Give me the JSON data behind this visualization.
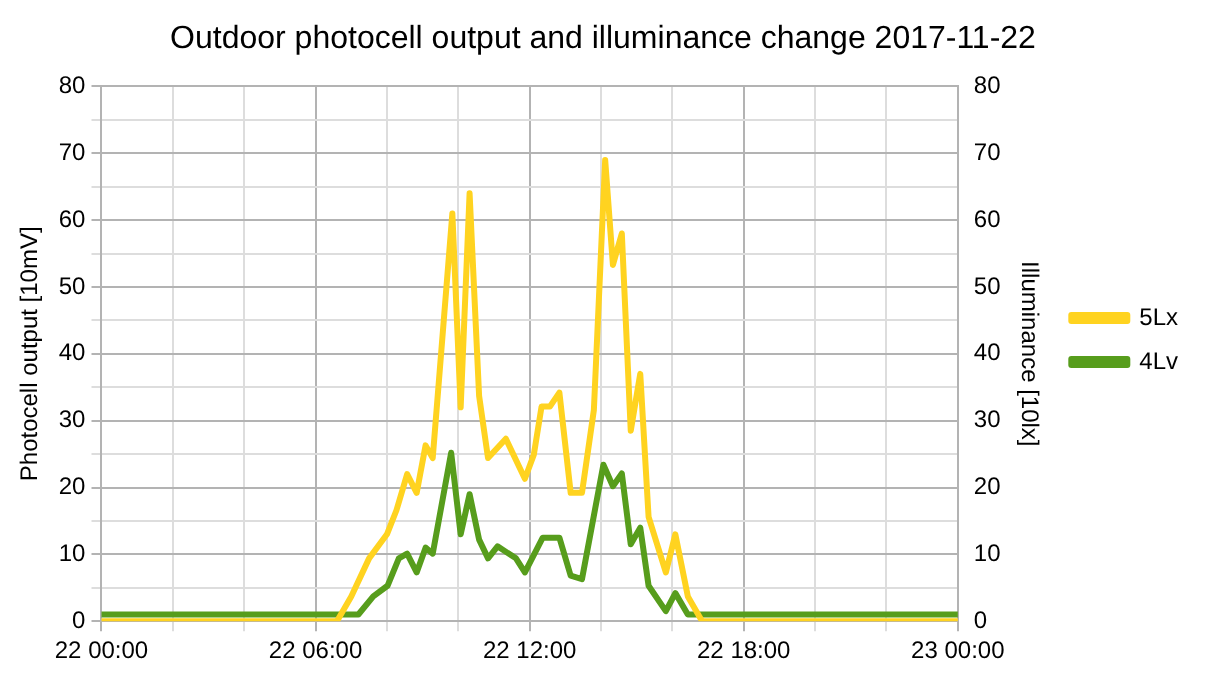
{
  "chart_data": {
    "type": "line",
    "title": "Outdoor photocell output and illuminance change 2017-11-22",
    "ylabel": "Photocell output [10mV]",
    "y2label": "Illuminance [10lx]",
    "xlim": [
      "2017-11-22T00:00",
      "2017-11-23T00:00"
    ],
    "xticks": [
      {
        "value": "2017-11-22T00:00",
        "label": "22 00:00"
      },
      {
        "value": "2017-11-22T02:00",
        "label": null
      },
      {
        "value": "2017-11-22T04:00",
        "label": null
      },
      {
        "value": "2017-11-22T06:00",
        "label": "22 06:00"
      },
      {
        "value": "2017-11-22T08:00",
        "label": null
      },
      {
        "value": "2017-11-22T10:00",
        "label": null
      },
      {
        "value": "2017-11-22T12:00",
        "label": "22 12:00"
      },
      {
        "value": "2017-11-22T14:00",
        "label": null
      },
      {
        "value": "2017-11-22T16:00",
        "label": null
      },
      {
        "value": "2017-11-22T18:00",
        "label": "22 18:00"
      },
      {
        "value": "2017-11-22T20:00",
        "label": null
      },
      {
        "value": "2017-11-22T22:00",
        "label": null
      },
      {
        "value": "2017-11-23T00:00",
        "label": "23 00:00"
      }
    ],
    "ylim": [
      0,
      80
    ],
    "yticks": [
      0,
      {
        "value": 5,
        "label": null
      },
      10,
      {
        "value": 15,
        "label": null
      },
      20,
      {
        "value": 25,
        "label": null
      },
      30,
      {
        "value": 35,
        "label": null
      },
      40,
      {
        "value": 45,
        "label": null
      },
      50,
      {
        "value": 55,
        "label": null
      },
      60,
      {
        "value": 65,
        "label": null
      },
      70,
      {
        "value": 75,
        "label": null
      },
      80
    ],
    "y2lim": [
      0,
      80
    ],
    "y2ticks": [
      0,
      10,
      20,
      30,
      40,
      50,
      60,
      70,
      80
    ],
    "grid": true,
    "legend": "right",
    "marker": "none",
    "line_style": "solid",
    "series": [
      {
        "name": "5Lx",
        "color": "#ffd320",
        "x": [
          "2017-11-22T00:00",
          "2017-11-22T06:36",
          "2017-11-22T07:00",
          "2017-11-22T07:30",
          "2017-11-22T08:00",
          "2017-11-22T08:16",
          "2017-11-22T08:34",
          "2017-11-22T08:50",
          "2017-11-22T09:05",
          "2017-11-22T09:17",
          "2017-11-22T09:50",
          "2017-11-22T10:04",
          "2017-11-22T10:19",
          "2017-11-22T10:35",
          "2017-11-22T10:50",
          "2017-11-22T11:20",
          "2017-11-22T11:52",
          "2017-11-22T12:07",
          "2017-11-22T12:20",
          "2017-11-22T12:34",
          "2017-11-22T12:50",
          "2017-11-22T13:09",
          "2017-11-22T13:28",
          "2017-11-22T13:48",
          "2017-11-22T14:07",
          "2017-11-22T14:20",
          "2017-11-22T14:35",
          "2017-11-22T14:50",
          "2017-11-22T15:06",
          "2017-11-22T15:20",
          "2017-11-22T15:49",
          "2017-11-22T16:05",
          "2017-11-22T16:26",
          "2017-11-22T16:50",
          "2017-11-23T00:00"
        ],
        "values": [
          0,
          0,
          3.7,
          9.4,
          13,
          16.6,
          22,
          19.2,
          26.3,
          24.4,
          61,
          32,
          64,
          33.7,
          24.4,
          27.3,
          21.3,
          24.9,
          32.1,
          32.1,
          34.2,
          19.2,
          19.2,
          31.6,
          69,
          53.3,
          58,
          28.5,
          37,
          15.6,
          7.3,
          13,
          3.7,
          0,
          0
        ]
      },
      {
        "name": "4Lv",
        "color": "#579d1c",
        "x": [
          "2017-11-22T00:00",
          "2017-11-22T07:12",
          "2017-11-22T07:37",
          "2017-11-22T08:01",
          "2017-11-22T08:20",
          "2017-11-22T08:34",
          "2017-11-22T08:50",
          "2017-11-22T09:05",
          "2017-11-22T09:17",
          "2017-11-22T09:48",
          "2017-11-22T10:04",
          "2017-11-22T10:19",
          "2017-11-22T10:35",
          "2017-11-22T10:50",
          "2017-11-22T11:06",
          "2017-11-22T11:37",
          "2017-11-22T11:52",
          "2017-11-22T12:22",
          "2017-11-22T12:50",
          "2017-11-22T13:09",
          "2017-11-22T13:28",
          "2017-11-22T14:04",
          "2017-11-22T14:20",
          "2017-11-22T14:35",
          "2017-11-22T14:50",
          "2017-11-22T15:06",
          "2017-11-22T15:20",
          "2017-11-22T15:49",
          "2017-11-22T16:05",
          "2017-11-22T16:26",
          "2017-11-23T00:00"
        ],
        "values": [
          1,
          1,
          3.7,
          5.3,
          9.4,
          10.1,
          7.3,
          11,
          10.1,
          25.2,
          13,
          19,
          12.2,
          9.4,
          11.2,
          9.4,
          7.3,
          12.5,
          12.5,
          6.8,
          6.3,
          23.4,
          20.2,
          22.1,
          11.5,
          14,
          5.3,
          1.5,
          4.2,
          1,
          1
        ]
      }
    ]
  }
}
